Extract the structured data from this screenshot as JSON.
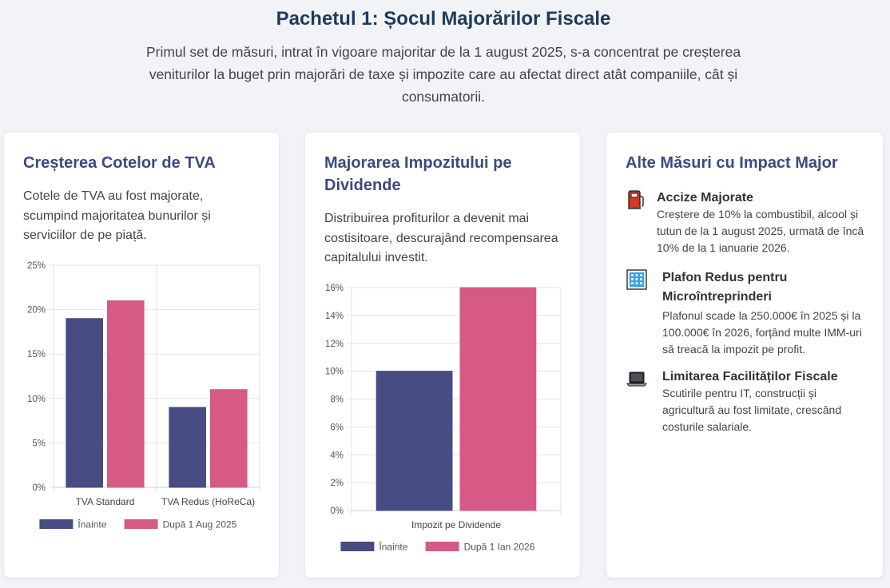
{
  "header": {
    "title": "Pachetul 1: Șocul Majorărilor Fiscale",
    "intro": "Primul set de măsuri, intrat în vigoare majoritar de la 1 august 2025, s-a concentrat pe creșterea veniturilor la buget prin majorări de taxe și impozite care au afectat direct atât companiile, cât și consumatorii."
  },
  "colors": {
    "before": "#474c82",
    "after": "#d65a85",
    "title": "#1f3b5b",
    "card_heading": "#3d4a80"
  },
  "cards": [
    {
      "heading": "Creșterea Cotelor de TVA",
      "description": "Cotele de TVA au fost majorate, scumpind majoritatea bunurilor și serviciilor de pe piață."
    },
    {
      "heading": "Majorarea Impozitului pe Dividende",
      "description": "Distribuirea profiturilor a devenit mai costisitoare, descurajând recompensarea capitalului investit."
    },
    {
      "heading": "Alte Măsuri cu Impact Major",
      "measures": [
        {
          "icon": "fuel-pump-icon",
          "title": "Accize Majorate",
          "text": "Creștere de 10% la combustibil, alcool și tutun de la 1 august 2025, urmată de încă 10% de la 1 ianuarie 2026."
        },
        {
          "icon": "office-building-icon",
          "title": "Plafon Redus pentru Microîntreprinderi",
          "text": "Plafonul scade la 250.000€ în 2025 și la 100.000€ în 2026, forțând multe IMM-uri să treacă la impozit pe profit."
        },
        {
          "icon": "laptop-icon",
          "title": "Limitarea Facilităților Fiscale",
          "text": "Scutirile pentru IT, construcții și agricultură au fost limitate, crescând costurile salariale."
        }
      ]
    }
  ],
  "chart_data": [
    {
      "type": "bar",
      "categories": [
        "TVA Standard",
        "TVA Redus (HoReCa)"
      ],
      "series": [
        {
          "name": "Înainte",
          "values": [
            19,
            9
          ],
          "color": "#474c82"
        },
        {
          "name": "După 1 Aug 2025",
          "values": [
            21,
            11
          ],
          "color": "#d65a85"
        }
      ],
      "ylim": [
        0,
        25
      ],
      "yticks": [
        0,
        5,
        10,
        15,
        20,
        25
      ],
      "ytick_format": "{v}%",
      "grid": true,
      "legend": "bottom"
    },
    {
      "type": "bar",
      "categories": [
        "Impozit pe Dividende"
      ],
      "series": [
        {
          "name": "Înainte",
          "values": [
            10
          ],
          "color": "#474c82"
        },
        {
          "name": "După 1 Ian 2026",
          "values": [
            16
          ],
          "color": "#d65a85"
        }
      ],
      "ylim": [
        0,
        16
      ],
      "yticks": [
        0,
        2,
        4,
        6,
        8,
        10,
        12,
        14,
        16
      ],
      "ytick_format": "{v}%",
      "grid": true,
      "legend": "bottom"
    }
  ]
}
